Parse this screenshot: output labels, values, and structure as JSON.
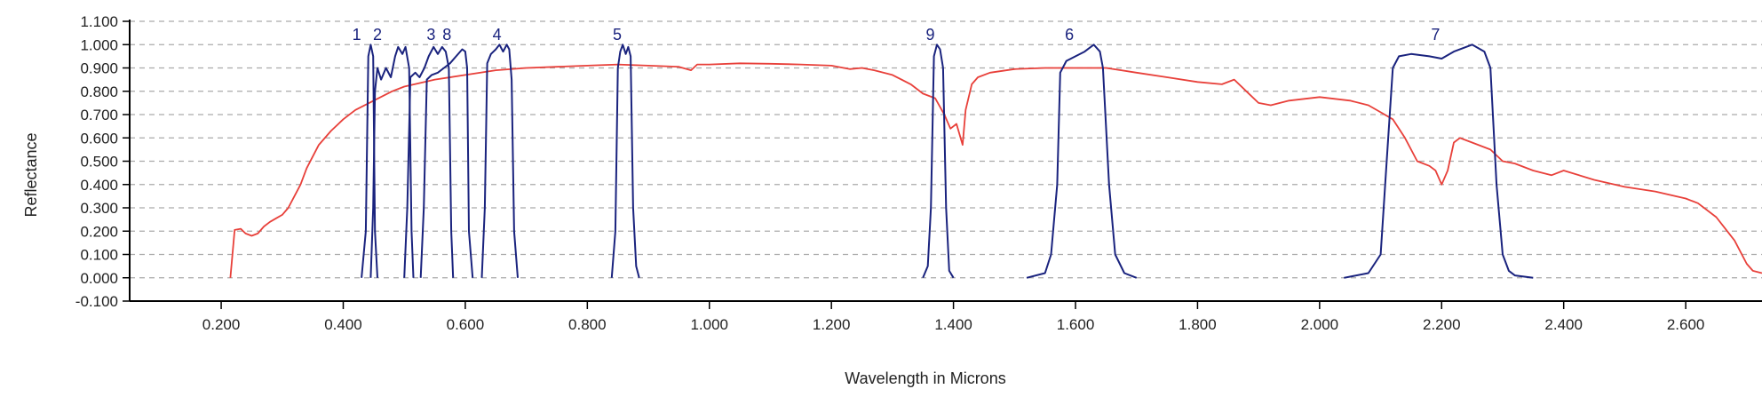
{
  "chart_data": {
    "type": "line",
    "xlabel": "Wavelength in Microns",
    "ylabel": "Reflectance",
    "xlim": [
      0.05,
      2.725
    ],
    "ylim": [
      -0.1,
      1.1
    ],
    "x_ticks": [
      0.2,
      0.4,
      0.6,
      0.8,
      1.0,
      1.2,
      1.4,
      1.6,
      1.8,
      2.0,
      2.2,
      2.4,
      2.6
    ],
    "x_tick_labels": [
      "0.200",
      "0.400",
      "0.600",
      "0.800",
      "1.000",
      "1.200",
      "1.400",
      "1.600",
      "1.800",
      "2.000",
      "2.200",
      "2.400",
      "2.600"
    ],
    "y_ticks": [
      -0.1,
      0.0,
      0.1,
      0.2,
      0.3,
      0.4,
      0.5,
      0.6,
      0.7,
      0.8,
      0.9,
      1.0,
      1.1
    ],
    "y_tick_labels": [
      "-0.100",
      "0.000",
      "0.100",
      "0.200",
      "0.300",
      "0.400",
      "0.500",
      "0.600",
      "0.700",
      "0.800",
      "0.900",
      "1.000",
      "1.100"
    ],
    "grid": "horizontal dashed",
    "colors": {
      "spectrum": "#e8403a",
      "bands": "#1a237e",
      "grid": "#aaaaaa",
      "axis": "#000000"
    },
    "spectrum": {
      "x": [
        0.215,
        0.222,
        0.232,
        0.24,
        0.25,
        0.26,
        0.27,
        0.28,
        0.29,
        0.3,
        0.31,
        0.32,
        0.33,
        0.34,
        0.35,
        0.36,
        0.38,
        0.4,
        0.42,
        0.45,
        0.48,
        0.5,
        0.55,
        0.6,
        0.65,
        0.7,
        0.75,
        0.8,
        0.85,
        0.9,
        0.95,
        0.97,
        0.98,
        1.0,
        1.05,
        1.1,
        1.15,
        1.2,
        1.23,
        1.25,
        1.27,
        1.3,
        1.33,
        1.35,
        1.37,
        1.385,
        1.395,
        1.405,
        1.415,
        1.42,
        1.43,
        1.44,
        1.46,
        1.5,
        1.55,
        1.6,
        1.65,
        1.7,
        1.75,
        1.8,
        1.84,
        1.86,
        1.88,
        1.9,
        1.92,
        1.95,
        2.0,
        2.05,
        2.08,
        2.1,
        2.12,
        2.14,
        2.16,
        2.18,
        2.19,
        2.2,
        2.21,
        2.22,
        2.23,
        2.25,
        2.28,
        2.3,
        2.32,
        2.35,
        2.38,
        2.4,
        2.45,
        2.5,
        2.55,
        2.6,
        2.62,
        2.65,
        2.68,
        2.7,
        2.71,
        2.725
      ],
      "y": [
        0.0,
        0.205,
        0.21,
        0.19,
        0.18,
        0.19,
        0.22,
        0.24,
        0.255,
        0.27,
        0.3,
        0.35,
        0.4,
        0.47,
        0.52,
        0.57,
        0.63,
        0.68,
        0.72,
        0.76,
        0.8,
        0.82,
        0.85,
        0.87,
        0.89,
        0.9,
        0.905,
        0.91,
        0.915,
        0.91,
        0.905,
        0.89,
        0.915,
        0.915,
        0.92,
        0.918,
        0.915,
        0.91,
        0.895,
        0.9,
        0.89,
        0.87,
        0.83,
        0.79,
        0.77,
        0.7,
        0.64,
        0.66,
        0.57,
        0.72,
        0.83,
        0.86,
        0.88,
        0.895,
        0.9,
        0.9,
        0.9,
        0.88,
        0.86,
        0.84,
        0.83,
        0.85,
        0.8,
        0.75,
        0.74,
        0.76,
        0.775,
        0.76,
        0.74,
        0.71,
        0.68,
        0.6,
        0.5,
        0.48,
        0.46,
        0.4,
        0.46,
        0.58,
        0.6,
        0.58,
        0.55,
        0.5,
        0.49,
        0.46,
        0.44,
        0.46,
        0.42,
        0.39,
        0.37,
        0.34,
        0.32,
        0.26,
        0.16,
        0.06,
        0.03,
        0.02
      ]
    },
    "bands": [
      {
        "label": "1",
        "label_x": 0.422,
        "x": [
          0.43,
          0.437,
          0.441,
          0.445,
          0.449,
          0.452,
          0.456
        ],
        "y": [
          0.0,
          0.2,
          0.95,
          1.0,
          0.95,
          0.2,
          0.0
        ]
      },
      {
        "label": "2",
        "label_x": 0.456,
        "x": [
          0.445,
          0.449,
          0.452,
          0.456,
          0.462,
          0.47,
          0.478,
          0.485,
          0.49,
          0.497,
          0.502,
          0.508,
          0.512,
          0.515
        ],
        "y": [
          0.0,
          0.3,
          0.8,
          0.9,
          0.85,
          0.9,
          0.86,
          0.95,
          0.99,
          0.96,
          0.99,
          0.9,
          0.2,
          0.0
        ]
      },
      {
        "label": "3",
        "label_x": 0.544,
        "x": [
          0.5,
          0.505,
          0.51,
          0.518,
          0.525,
          0.533,
          0.54,
          0.548,
          0.555,
          0.562,
          0.568,
          0.573,
          0.577,
          0.58
        ],
        "y": [
          0.0,
          0.3,
          0.86,
          0.88,
          0.86,
          0.9,
          0.95,
          0.99,
          0.96,
          0.99,
          0.97,
          0.9,
          0.2,
          0.0
        ]
      },
      {
        "label": "8",
        "label_x": 0.57,
        "x": [
          0.527,
          0.532,
          0.537,
          0.545,
          0.555,
          0.565,
          0.575,
          0.585,
          0.595,
          0.6,
          0.603,
          0.606,
          0.612
        ],
        "y": [
          0.0,
          0.3,
          0.85,
          0.87,
          0.88,
          0.9,
          0.92,
          0.95,
          0.98,
          0.97,
          0.9,
          0.2,
          0.0
        ]
      },
      {
        "label": "4",
        "label_x": 0.652,
        "x": [
          0.627,
          0.632,
          0.636,
          0.642,
          0.65,
          0.656,
          0.662,
          0.668,
          0.672,
          0.676,
          0.68,
          0.686
        ],
        "y": [
          0.0,
          0.3,
          0.92,
          0.96,
          0.98,
          1.0,
          0.97,
          1.0,
          0.98,
          0.85,
          0.2,
          0.0
        ]
      },
      {
        "label": "5",
        "label_x": 0.849,
        "x": [
          0.84,
          0.846,
          0.85,
          0.854,
          0.858,
          0.863,
          0.867,
          0.871,
          0.875,
          0.88,
          0.885
        ],
        "y": [
          0.0,
          0.2,
          0.9,
          0.97,
          1.0,
          0.96,
          0.99,
          0.95,
          0.3,
          0.05,
          0.0
        ]
      },
      {
        "label": "9",
        "label_x": 1.362,
        "x": [
          1.35,
          1.358,
          1.363,
          1.368,
          1.373,
          1.378,
          1.383,
          1.388,
          1.393,
          1.4
        ],
        "y": [
          0.0,
          0.05,
          0.3,
          0.95,
          1.0,
          0.98,
          0.9,
          0.3,
          0.03,
          0.0
        ]
      },
      {
        "label": "6",
        "label_x": 1.59,
        "x": [
          1.52,
          1.55,
          1.56,
          1.57,
          1.575,
          1.585,
          1.6,
          1.615,
          1.63,
          1.64,
          1.645,
          1.655,
          1.665,
          1.68,
          1.7
        ],
        "y": [
          0.0,
          0.02,
          0.1,
          0.4,
          0.88,
          0.93,
          0.95,
          0.97,
          1.0,
          0.97,
          0.9,
          0.4,
          0.1,
          0.02,
          0.0
        ]
      },
      {
        "label": "7",
        "label_x": 2.19,
        "x": [
          2.04,
          2.08,
          2.1,
          2.11,
          2.12,
          2.13,
          2.15,
          2.18,
          2.2,
          2.22,
          2.25,
          2.27,
          2.28,
          2.29,
          2.3,
          2.31,
          2.32,
          2.35
        ],
        "y": [
          0.0,
          0.02,
          0.1,
          0.5,
          0.9,
          0.95,
          0.96,
          0.95,
          0.94,
          0.97,
          1.0,
          0.97,
          0.9,
          0.4,
          0.1,
          0.03,
          0.01,
          0.0
        ]
      }
    ]
  }
}
